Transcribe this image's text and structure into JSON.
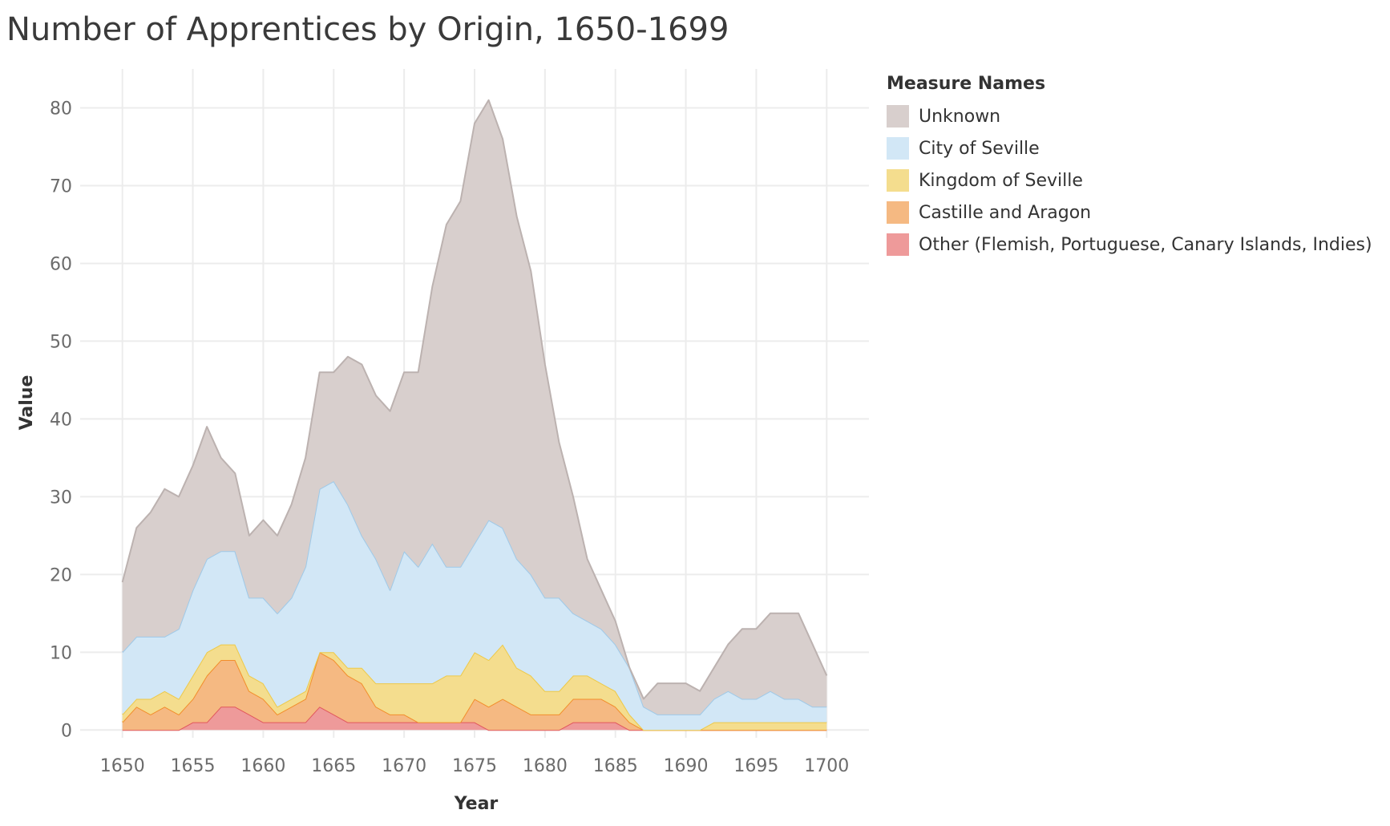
{
  "chart_data": {
    "type": "area",
    "stacked": true,
    "title": "Number of Apprentices by Origin, 1650-1699",
    "xlabel": "Year",
    "ylabel": "Value",
    "xlim": [
      1647,
      1703
    ],
    "ylim": [
      -1,
      85
    ],
    "x_ticks": [
      1650,
      1655,
      1660,
      1665,
      1670,
      1675,
      1680,
      1685,
      1690,
      1695,
      1700
    ],
    "y_ticks": [
      0,
      10,
      20,
      30,
      40,
      50,
      60,
      70,
      80
    ],
    "legend_title": "Measure Names",
    "legend_position": "right",
    "x": [
      1650,
      1651,
      1652,
      1653,
      1654,
      1655,
      1656,
      1657,
      1658,
      1659,
      1660,
      1661,
      1662,
      1663,
      1664,
      1665,
      1666,
      1667,
      1668,
      1669,
      1670,
      1671,
      1672,
      1673,
      1674,
      1675,
      1676,
      1677,
      1678,
      1679,
      1680,
      1681,
      1682,
      1683,
      1684,
      1685,
      1686,
      1687,
      1688,
      1689,
      1690,
      1691,
      1692,
      1693,
      1694,
      1695,
      1696,
      1697,
      1698,
      1699,
      1700
    ],
    "series": [
      {
        "name": "Other (Flemish, Portuguese, Canary Islands, Indies)",
        "color": "#ee9a9a",
        "stroke": "#e1575c",
        "values": [
          0,
          0,
          0,
          0,
          0,
          1,
          1,
          3,
          3,
          2,
          1,
          1,
          1,
          1,
          3,
          2,
          1,
          1,
          1,
          1,
          1,
          1,
          1,
          1,
          1,
          1,
          0,
          0,
          0,
          0,
          0,
          0,
          1,
          1,
          1,
          1,
          0,
          0,
          0,
          0,
          0,
          0,
          0,
          0,
          0,
          0,
          0,
          0,
          0,
          0,
          0
        ]
      },
      {
        "name": "Castille and Aragon",
        "color": "#f5b982",
        "stroke": "#f28e2b",
        "values": [
          1,
          3,
          2,
          3,
          2,
          3,
          6,
          6,
          6,
          3,
          3,
          1,
          2,
          3,
          7,
          7,
          6,
          5,
          2,
          1,
          1,
          0,
          0,
          0,
          0,
          3,
          3,
          4,
          3,
          2,
          2,
          2,
          3,
          3,
          3,
          2,
          1,
          0,
          0,
          0,
          0,
          0,
          0,
          0,
          0,
          0,
          0,
          0,
          0,
          0,
          0
        ]
      },
      {
        "name": "Kingdom of Seville",
        "color": "#f4dd8e",
        "stroke": "#edc948",
        "values": [
          1,
          1,
          2,
          2,
          2,
          3,
          3,
          2,
          2,
          2,
          2,
          1,
          1,
          1,
          0,
          1,
          1,
          2,
          3,
          4,
          4,
          5,
          5,
          6,
          6,
          6,
          6,
          7,
          5,
          5,
          3,
          3,
          3,
          3,
          2,
          2,
          1,
          0,
          0,
          0,
          0,
          0,
          1,
          1,
          1,
          1,
          1,
          1,
          1,
          1,
          1
        ]
      },
      {
        "name": "City of Seville",
        "color": "#d2e7f6",
        "stroke": "#9ec9e8",
        "values": [
          8,
          8,
          8,
          7,
          9,
          11,
          12,
          12,
          12,
          10,
          11,
          12,
          13,
          16,
          21,
          22,
          21,
          17,
          16,
          12,
          17,
          15,
          18,
          14,
          14,
          14,
          18,
          15,
          14,
          13,
          12,
          12,
          8,
          7,
          7,
          6,
          6,
          3,
          2,
          2,
          2,
          2,
          3,
          4,
          3,
          3,
          4,
          3,
          3,
          2,
          2
        ]
      },
      {
        "name": "Unknown",
        "color": "#d8cfcd",
        "stroke": "#bcb2b0",
        "values": [
          9,
          14,
          16,
          19,
          17,
          16,
          17,
          12,
          10,
          8,
          10,
          10,
          12,
          14,
          15,
          14,
          19,
          22,
          21,
          23,
          23,
          25,
          33,
          44,
          47,
          54,
          54,
          50,
          44,
          39,
          30,
          20,
          15,
          8,
          5,
          3,
          0,
          1,
          4,
          4,
          4,
          3,
          4,
          6,
          9,
          9,
          10,
          11,
          11,
          8,
          4
        ]
      }
    ]
  }
}
